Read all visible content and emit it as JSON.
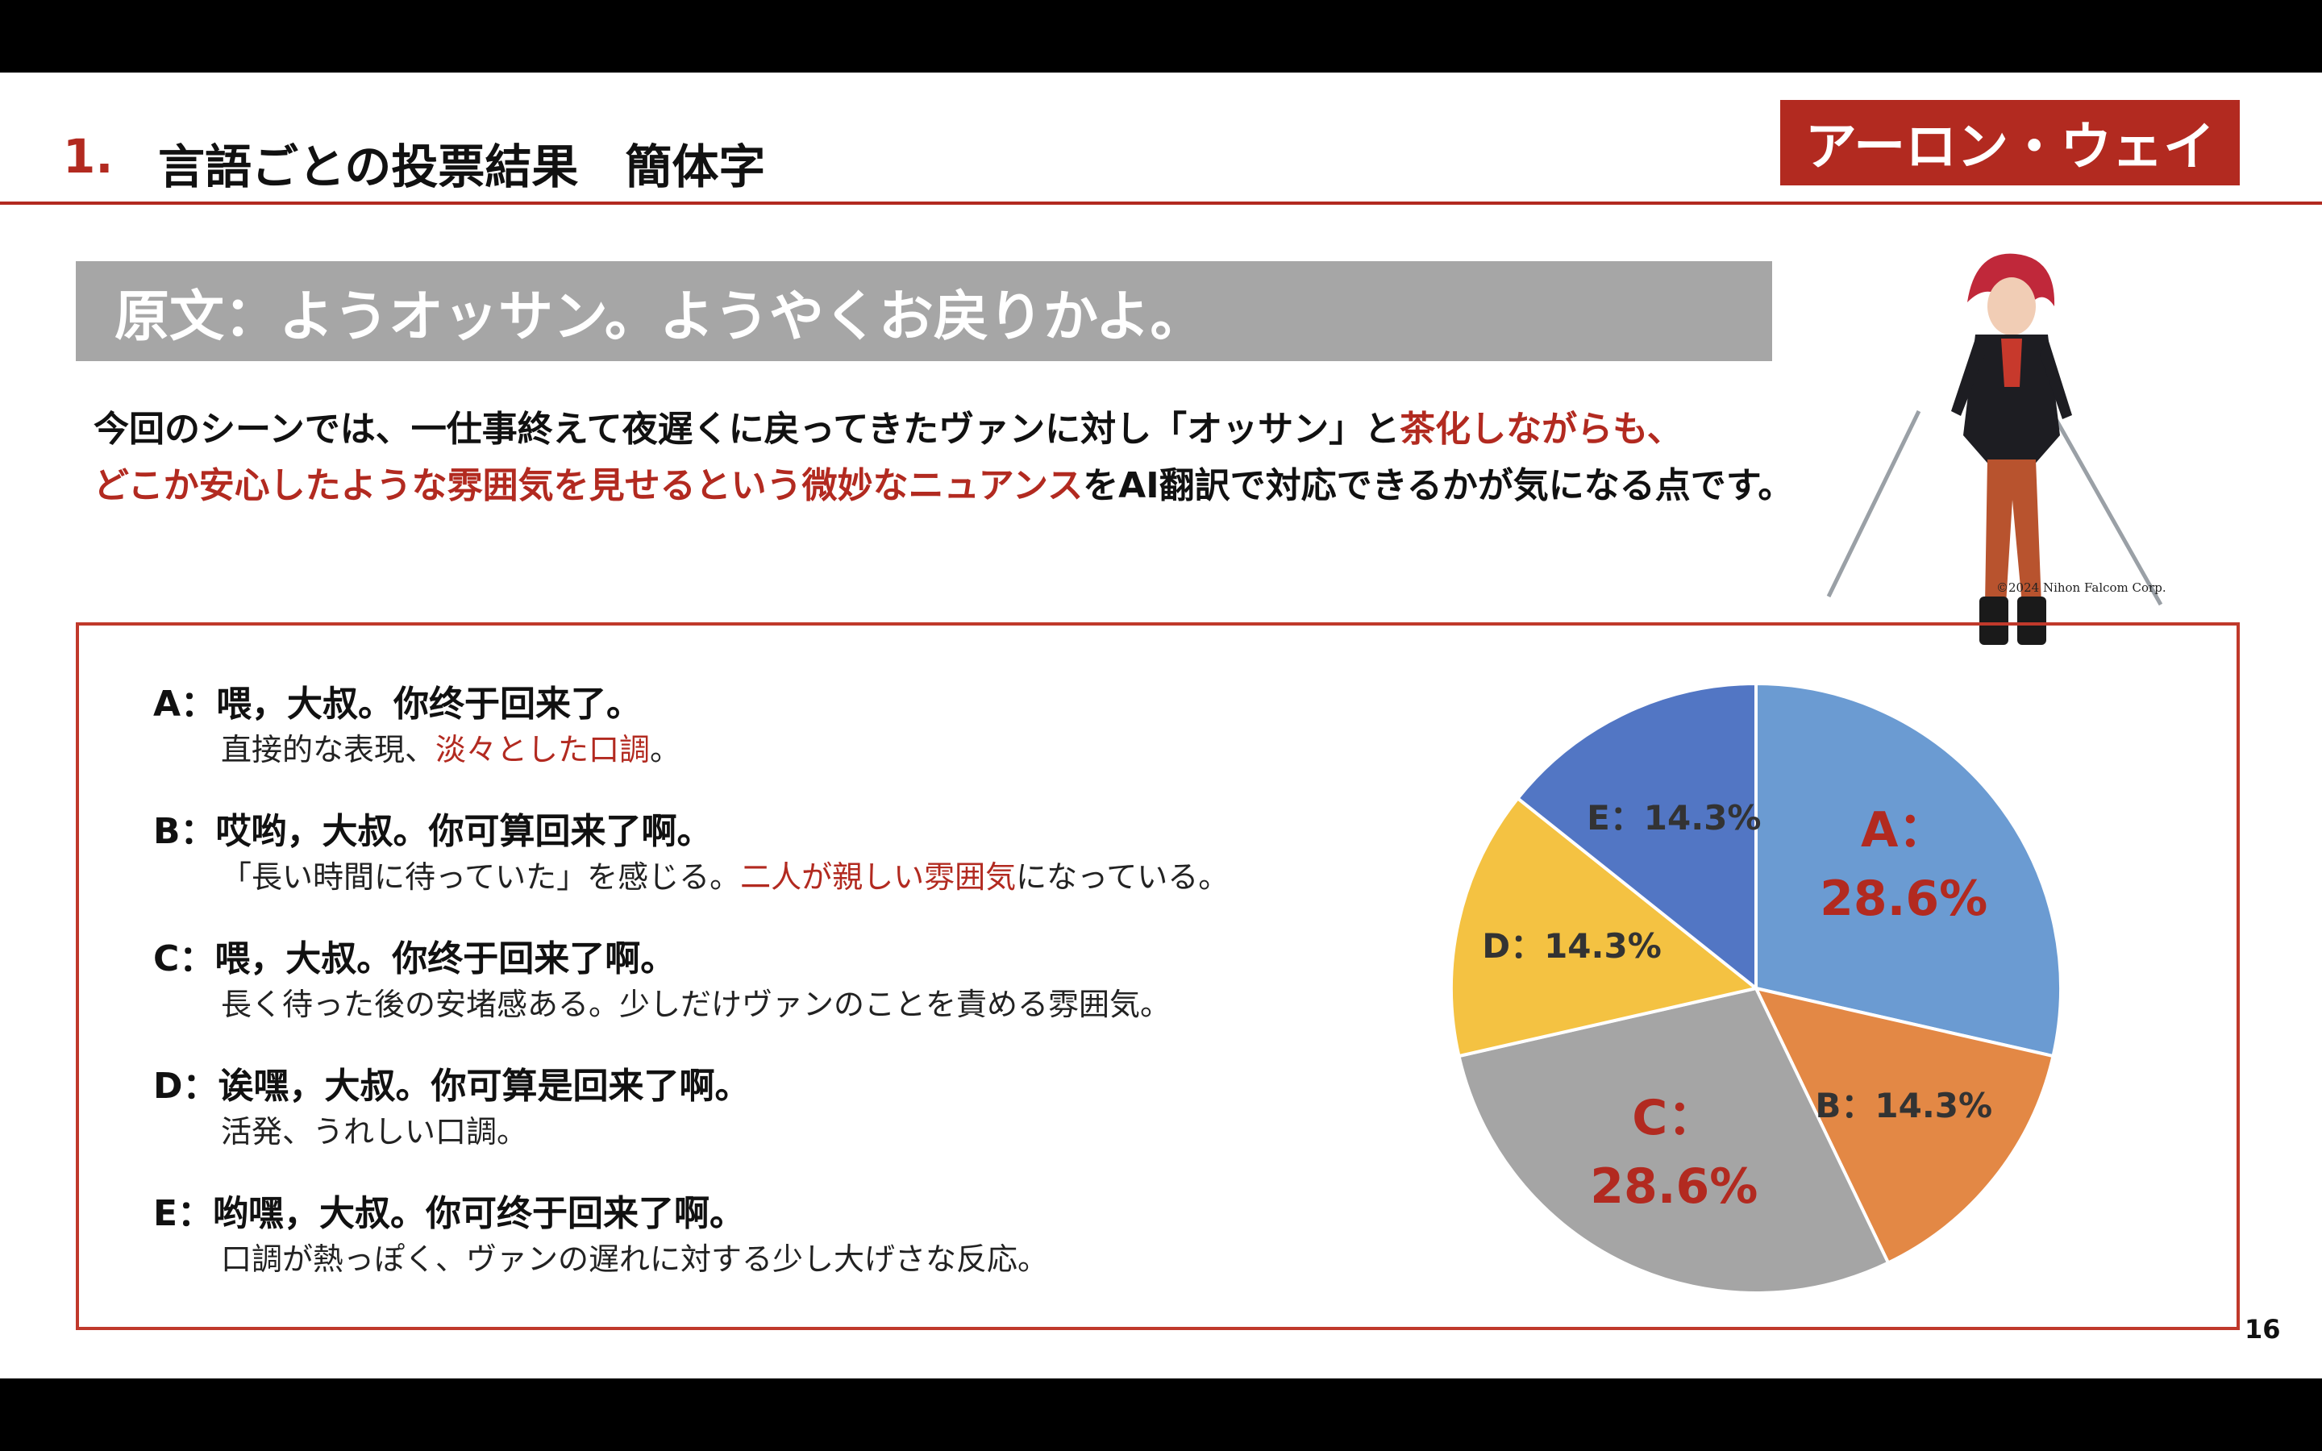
{
  "header": {
    "number": "1.",
    "title": "言語ごとの投票結果　簡体字",
    "character_name": "アーロン・ウェイ"
  },
  "banner": {
    "original_text": "原文：ようオッサン。ようやくお戻りかよ。"
  },
  "description": {
    "line1_a": "今回のシーンでは、一仕事終えて夜遅くに戻ってきたヴァンに対し「オッサン」と",
    "line1_b": "茶化しながらも、",
    "line2_a": "どこか安心したような雰囲気を見せるという微妙なニュアンス",
    "line2_b": "をAI翻訳で対応できるかが気になる点です。"
  },
  "copyright": "©2024 Nihon Falcom Corp.",
  "options": [
    {
      "label": "A：",
      "text": "喂，大叔。你终于回来了。",
      "desc_a": "直接的な表現、",
      "desc_red": "淡々とした口調",
      "desc_b": "。"
    },
    {
      "label": "B：",
      "text": "哎哟，大叔。你可算回来了啊。",
      "desc_a": "「長い時間に待っていた」を感じる。",
      "desc_red": "二人が親しい雰囲気",
      "desc_b": "になっている。"
    },
    {
      "label": "C：",
      "text": "喂，大叔。你终于回来了啊。",
      "desc_a": "長く待った後の安堵感ある。少しだけヴァンのことを責める雰囲気。",
      "desc_red": "",
      "desc_b": ""
    },
    {
      "label": "D：",
      "text": "诶嘿，大叔。你可算是回来了啊。",
      "desc_a": "活発、うれしい口調。",
      "desc_red": "",
      "desc_b": ""
    },
    {
      "label": "E：",
      "text": "哟嘿，大叔。你可终于回来了啊。",
      "desc_a": "口調が熱っぽく、ヴァンの遅れに対する少し大げさな反応。",
      "desc_red": "",
      "desc_b": ""
    }
  ],
  "chart_data": {
    "type": "pie",
    "categories": [
      "A",
      "B",
      "C",
      "D",
      "E"
    ],
    "values": [
      28.6,
      14.3,
      28.6,
      14.3,
      14.3
    ],
    "labels": [
      "A：28.6%",
      "B：14.3%",
      "C：28.6%",
      "D：14.3%",
      "E：14.3%"
    ],
    "colors": [
      "#6b9bd2",
      "#e38845",
      "#a5a5a5",
      "#f4c242",
      "#5276c4"
    ],
    "label_colors": [
      "#b22a20",
      "#333333",
      "#b22a20",
      "#333333",
      "#333333"
    ],
    "start_angle_deg": 0,
    "direction": "clockwise"
  },
  "page_number": "16"
}
